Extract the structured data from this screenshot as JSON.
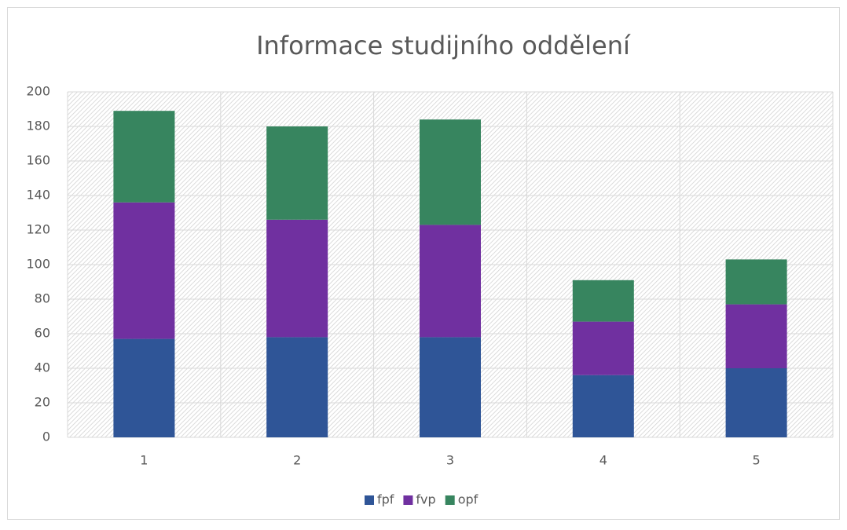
{
  "chart_data": {
    "type": "stacked_bar",
    "title": "Informace studijního oddělení",
    "categories": [
      "1",
      "2",
      "3",
      "4",
      "5"
    ],
    "series": [
      {
        "name": "fpf",
        "color": "#2f5597",
        "values": [
          57,
          58,
          58,
          36,
          40
        ]
      },
      {
        "name": "fvp",
        "color": "#7030a0",
        "values": [
          79,
          68,
          65,
          31,
          37
        ]
      },
      {
        "name": "opf",
        "color": "#37855f",
        "values": [
          53,
          54,
          61,
          24,
          26
        ]
      }
    ],
    "ylim": [
      0,
      200
    ],
    "yticks": [
      0,
      20,
      40,
      60,
      80,
      100,
      120,
      140,
      160,
      180,
      200
    ],
    "grid": true,
    "legend": "bottom"
  }
}
